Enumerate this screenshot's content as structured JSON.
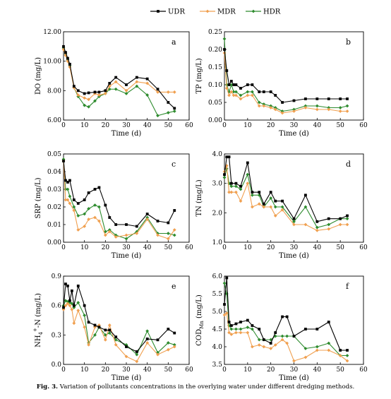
{
  "legend": {
    "placement": "top-center",
    "entries": [
      {
        "name": "UDR",
        "color": "#000000",
        "marker": "square"
      },
      {
        "name": "MDR",
        "color": "#f0a050",
        "marker": "diamond"
      },
      {
        "name": "HDR",
        "color": "#2e8b2e",
        "marker": "diamond"
      }
    ]
  },
  "caption": {
    "label": "Fig. 3.",
    "text": "Variation of pollutants concentrations in the overlying water under different dredging methods."
  },
  "chart_data": [
    {
      "type": "line",
      "panel_letter": "a",
      "xlabel": "Time (d)",
      "ylabel": "DO (mg/L)",
      "xlim": [
        0,
        60
      ],
      "ylim": [
        6,
        12
      ],
      "xticks": [
        0,
        10,
        20,
        30,
        40,
        50,
        60
      ],
      "yticks": [
        6,
        8,
        10,
        12
      ],
      "ytick_labels": [
        "6.00",
        "8.00",
        "10.00",
        "12.00"
      ],
      "grid": false,
      "series": [
        {
          "name": "UDR",
          "x": [
            0,
            1,
            2,
            3,
            5,
            7,
            10,
            12,
            15,
            17,
            20,
            22,
            25,
            30,
            35,
            40,
            45,
            50,
            53
          ],
          "y": [
            11.0,
            10.6,
            10.2,
            9.8,
            8.3,
            8.0,
            7.8,
            7.85,
            7.9,
            7.9,
            8.0,
            8.5,
            8.9,
            8.4,
            8.9,
            8.8,
            8.1,
            7.2,
            6.8
          ]
        },
        {
          "name": "MDR",
          "x": [
            0,
            1,
            2,
            3,
            5,
            7,
            10,
            12,
            15,
            17,
            20,
            22,
            25,
            30,
            35,
            40,
            45,
            50,
            53
          ],
          "y": [
            10.8,
            10.4,
            10.0,
            9.6,
            8.2,
            7.7,
            7.5,
            7.4,
            7.8,
            7.7,
            7.8,
            8.3,
            8.6,
            8.0,
            8.6,
            8.5,
            7.9,
            7.9,
            7.9
          ]
        },
        {
          "name": "HDR",
          "x": [
            0,
            1,
            2,
            3,
            5,
            7,
            10,
            12,
            15,
            17,
            20,
            22,
            25,
            30,
            35,
            40,
            45,
            50,
            53
          ],
          "y": [
            10.9,
            10.5,
            10.1,
            9.7,
            8.2,
            7.6,
            7.0,
            6.9,
            7.3,
            7.6,
            7.8,
            8.1,
            8.1,
            7.8,
            8.3,
            7.7,
            6.3,
            6.5,
            6.6
          ]
        }
      ]
    },
    {
      "type": "line",
      "panel_letter": "b",
      "xlabel": "Time (d)",
      "ylabel": "TP (mg/L)",
      "xlim": [
        0,
        60
      ],
      "ylim": [
        0,
        0.25
      ],
      "xticks": [
        0,
        10,
        20,
        30,
        40,
        50,
        60
      ],
      "yticks": [
        0,
        0.05,
        0.1,
        0.15,
        0.2,
        0.25
      ],
      "ytick_labels": [
        "0.00",
        "0.05",
        "0.10",
        "0.15",
        "0.20",
        "0.25"
      ],
      "grid": false,
      "series": [
        {
          "name": "UDR",
          "x": [
            0,
            1,
            2,
            3,
            4,
            5,
            7,
            10,
            12,
            15,
            17,
            20,
            22,
            25,
            30,
            35,
            40,
            45,
            50,
            53
          ],
          "y": [
            0.2,
            0.14,
            0.1,
            0.11,
            0.1,
            0.1,
            0.09,
            0.1,
            0.1,
            0.08,
            0.08,
            0.08,
            0.07,
            0.05,
            0.055,
            0.06,
            0.06,
            0.06,
            0.06,
            0.06
          ]
        },
        {
          "name": "MDR",
          "x": [
            0,
            1,
            2,
            3,
            4,
            5,
            7,
            10,
            12,
            15,
            17,
            20,
            22,
            25,
            30,
            35,
            40,
            45,
            50,
            53
          ],
          "y": [
            0.19,
            0.09,
            0.07,
            0.08,
            0.07,
            0.07,
            0.06,
            0.07,
            0.07,
            0.04,
            0.04,
            0.035,
            0.03,
            0.02,
            0.025,
            0.035,
            0.03,
            0.03,
            0.025,
            0.025
          ]
        },
        {
          "name": "HDR",
          "x": [
            0,
            1,
            2,
            3,
            4,
            5,
            7,
            10,
            12,
            15,
            17,
            20,
            22,
            25,
            30,
            35,
            40,
            45,
            50,
            53
          ],
          "y": [
            0.23,
            0.1,
            0.08,
            0.1,
            0.08,
            0.08,
            0.07,
            0.08,
            0.08,
            0.05,
            0.045,
            0.04,
            0.035,
            0.025,
            0.03,
            0.04,
            0.04,
            0.035,
            0.035,
            0.04
          ]
        }
      ]
    },
    {
      "type": "line",
      "panel_letter": "c",
      "xlabel": "Time (d)",
      "ylabel": "SRP (mg/L)",
      "xlim": [
        0,
        60
      ],
      "ylim": [
        0,
        0.05
      ],
      "xticks": [
        0,
        10,
        20,
        30,
        40,
        50,
        60
      ],
      "yticks": [
        0,
        0.01,
        0.02,
        0.03,
        0.04,
        0.05
      ],
      "ytick_labels": [
        "0.00",
        "0.01",
        "0.02",
        "0.03",
        "0.04",
        "0.05"
      ],
      "grid": false,
      "series": [
        {
          "name": "UDR",
          "x": [
            0,
            1,
            2,
            3,
            5,
            7,
            10,
            12,
            15,
            17,
            20,
            22,
            25,
            30,
            35,
            40,
            45,
            50,
            53
          ],
          "y": [
            0.046,
            0.035,
            0.034,
            0.035,
            0.024,
            0.022,
            0.024,
            0.028,
            0.03,
            0.031,
            0.021,
            0.014,
            0.01,
            0.01,
            0.009,
            0.016,
            0.012,
            0.011,
            0.018
          ]
        },
        {
          "name": "MDR",
          "x": [
            0,
            1,
            2,
            3,
            5,
            7,
            10,
            12,
            15,
            17,
            20,
            22,
            25,
            30,
            35,
            40,
            45,
            50,
            53
          ],
          "y": [
            0.046,
            0.024,
            0.024,
            0.022,
            0.018,
            0.007,
            0.009,
            0.013,
            0.014,
            0.012,
            0.004,
            0.006,
            0.003,
            0.004,
            0.005,
            0.013,
            0.004,
            0.002,
            0.007
          ]
        },
        {
          "name": "HDR",
          "x": [
            0,
            1,
            2,
            3,
            5,
            7,
            10,
            12,
            15,
            17,
            20,
            22,
            25,
            30,
            35,
            40,
            45,
            50,
            53
          ],
          "y": [
            0.047,
            0.03,
            0.03,
            0.026,
            0.02,
            0.015,
            0.016,
            0.019,
            0.021,
            0.02,
            0.006,
            0.007,
            0.004,
            0.002,
            0.006,
            0.014,
            0.005,
            0.005,
            0.004
          ]
        }
      ]
    },
    {
      "type": "line",
      "panel_letter": "d",
      "xlabel": "Time (d)",
      "ylabel": "TN (mg/L)",
      "xlim": [
        0,
        60
      ],
      "ylim": [
        1,
        4
      ],
      "xticks": [
        0,
        10,
        20,
        30,
        40,
        50,
        60
      ],
      "yticks": [
        1,
        2,
        3,
        4
      ],
      "ytick_labels": [
        "1.0",
        "2.0",
        "3.0",
        "4.0"
      ],
      "grid": false,
      "series": [
        {
          "name": "UDR",
          "x": [
            0,
            1,
            2,
            3,
            5,
            7,
            10,
            12,
            15,
            17,
            20,
            22,
            25,
            30,
            35,
            40,
            45,
            50,
            53
          ],
          "y": [
            3.3,
            3.9,
            3.9,
            3.0,
            3.0,
            2.9,
            3.7,
            2.7,
            2.7,
            2.3,
            2.7,
            2.4,
            2.4,
            1.8,
            2.6,
            1.7,
            1.8,
            1.8,
            1.9
          ]
        },
        {
          "name": "MDR",
          "x": [
            0,
            1,
            2,
            3,
            5,
            7,
            10,
            12,
            15,
            17,
            20,
            22,
            25,
            30,
            35,
            40,
            45,
            50,
            53
          ],
          "y": [
            3.4,
            3.6,
            2.7,
            2.7,
            2.7,
            2.4,
            3.0,
            2.2,
            2.3,
            2.2,
            2.2,
            1.9,
            2.1,
            1.6,
            1.6,
            1.4,
            1.45,
            1.6,
            1.6
          ]
        },
        {
          "name": "HDR",
          "x": [
            0,
            1,
            2,
            3,
            5,
            7,
            10,
            12,
            15,
            17,
            20,
            22,
            25,
            30,
            35,
            40,
            45,
            50,
            53
          ],
          "y": [
            3.2,
            3.5,
            3.0,
            2.9,
            2.9,
            2.8,
            3.3,
            2.6,
            2.6,
            2.2,
            2.5,
            2.2,
            2.2,
            1.7,
            2.2,
            1.5,
            1.6,
            1.8,
            1.8
          ]
        }
      ]
    },
    {
      "type": "line",
      "panel_letter": "e",
      "xlabel": "Time (d)",
      "ylabel": "NH4+-N (mg/L)",
      "ylabel_parts": {
        "main": "NH",
        "sub": "4",
        "sup": "+",
        "rest": "-N (mg/L)"
      },
      "xlim": [
        0,
        60
      ],
      "ylim": [
        0,
        0.9
      ],
      "xticks": [
        0,
        10,
        20,
        30,
        40,
        50,
        60
      ],
      "yticks": [
        0,
        0.3,
        0.6,
        0.9
      ],
      "ytick_labels": [
        "0.0",
        "0.3",
        "0.6",
        "0.9"
      ],
      "grid": false,
      "series": [
        {
          "name": "UDR",
          "x": [
            0,
            1,
            2,
            3,
            4,
            5,
            7,
            10,
            12,
            15,
            17,
            20,
            22,
            25,
            30,
            35,
            40,
            45,
            50,
            53
          ],
          "y": [
            0.58,
            0.82,
            0.8,
            0.65,
            0.75,
            0.6,
            0.8,
            0.6,
            0.43,
            0.4,
            0.38,
            0.35,
            0.35,
            0.28,
            0.18,
            0.13,
            0.26,
            0.25,
            0.36,
            0.32
          ]
        },
        {
          "name": "MDR",
          "x": [
            0,
            1,
            2,
            3,
            4,
            5,
            7,
            10,
            12,
            15,
            17,
            20,
            22,
            25,
            30,
            35,
            40,
            45,
            50,
            53
          ],
          "y": [
            0.56,
            0.6,
            0.62,
            0.6,
            0.56,
            0.42,
            0.55,
            0.38,
            0.2,
            0.38,
            0.4,
            0.25,
            0.4,
            0.2,
            0.08,
            0.03,
            0.22,
            0.1,
            0.15,
            0.18
          ]
        },
        {
          "name": "HDR",
          "x": [
            0,
            1,
            2,
            3,
            4,
            5,
            7,
            10,
            12,
            15,
            17,
            20,
            22,
            25,
            30,
            35,
            40,
            45,
            50,
            53
          ],
          "y": [
            0.6,
            0.65,
            0.64,
            0.63,
            0.62,
            0.58,
            0.63,
            0.5,
            0.22,
            0.3,
            0.38,
            0.3,
            0.32,
            0.25,
            0.2,
            0.1,
            0.34,
            0.12,
            0.22,
            0.2
          ]
        }
      ]
    },
    {
      "type": "line",
      "panel_letter": "f",
      "xlabel": "Time (d)",
      "ylabel": "CODMn (mg/L)",
      "ylabel_parts": {
        "main": "COD",
        "sub": "Mn",
        "rest": " (mg/L)"
      },
      "xlim": [
        0,
        60
      ],
      "ylim": [
        3.5,
        6.0
      ],
      "xticks": [
        0,
        10,
        20,
        30,
        40,
        50,
        60
      ],
      "yticks": [
        3.5,
        4.0,
        4.5,
        5.0,
        5.5,
        6.0
      ],
      "ytick_labels": [
        "3.5",
        "4.0",
        "4.5",
        "5.0",
        "5.5",
        "6.0"
      ],
      "grid": false,
      "series": [
        {
          "name": "UDR",
          "x": [
            0,
            1,
            2,
            3,
            5,
            7,
            10,
            12,
            15,
            17,
            20,
            22,
            25,
            27,
            30,
            35,
            40,
            45,
            50,
            53
          ],
          "y": [
            5.2,
            5.95,
            4.7,
            4.6,
            4.65,
            4.7,
            4.75,
            4.6,
            4.5,
            4.2,
            4.1,
            4.4,
            4.85,
            4.85,
            4.3,
            4.5,
            4.5,
            4.7,
            3.9,
            3.9
          ]
        },
        {
          "name": "MDR",
          "x": [
            0,
            1,
            2,
            3,
            5,
            7,
            10,
            12,
            15,
            17,
            20,
            22,
            25,
            27,
            30,
            35,
            40,
            45,
            50,
            53
          ],
          "y": [
            4.9,
            4.95,
            4.4,
            4.35,
            4.4,
            4.4,
            4.4,
            4.0,
            4.05,
            4.0,
            3.95,
            4.05,
            4.2,
            4.1,
            3.6,
            3.7,
            3.9,
            3.9,
            3.75,
            3.6
          ]
        },
        {
          "name": "HDR",
          "x": [
            0,
            1,
            2,
            3,
            5,
            7,
            10,
            12,
            15,
            17,
            20,
            22,
            25,
            27,
            30,
            35,
            40,
            45,
            50,
            53
          ],
          "y": [
            5.8,
            5.5,
            4.6,
            4.5,
            4.5,
            4.5,
            4.55,
            4.5,
            4.2,
            4.2,
            4.2,
            4.3,
            4.3,
            4.3,
            4.3,
            3.95,
            4.0,
            4.1,
            3.75,
            3.75
          ]
        }
      ]
    }
  ]
}
